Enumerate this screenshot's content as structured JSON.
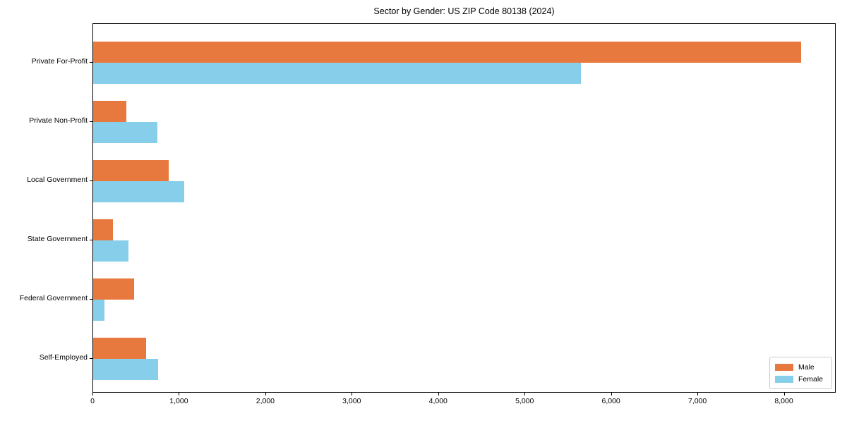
{
  "chart_data": {
    "type": "bar",
    "orientation": "horizontal",
    "title": "Sector by Gender: US ZIP Code 80138 (2024)",
    "categories": [
      "Private For-Profit",
      "Private Non-Profit",
      "Local Government",
      "State Government",
      "Federal Government",
      "Self-Employed"
    ],
    "series": [
      {
        "name": "Male",
        "color": "#e8793e",
        "values": [
          8190,
          380,
          870,
          230,
          470,
          610
        ]
      },
      {
        "name": "Female",
        "color": "#87ceeb",
        "values": [
          5640,
          740,
          1050,
          410,
          130,
          750
        ]
      }
    ],
    "xlim": [
      0,
      8600
    ],
    "xticks": [
      0,
      1000,
      2000,
      3000,
      4000,
      5000,
      6000,
      7000,
      8000
    ],
    "xlabel": "",
    "ylabel": "",
    "grid": false,
    "legend_position": "lower right",
    "legend_labels": [
      "Male",
      "Female"
    ]
  }
}
